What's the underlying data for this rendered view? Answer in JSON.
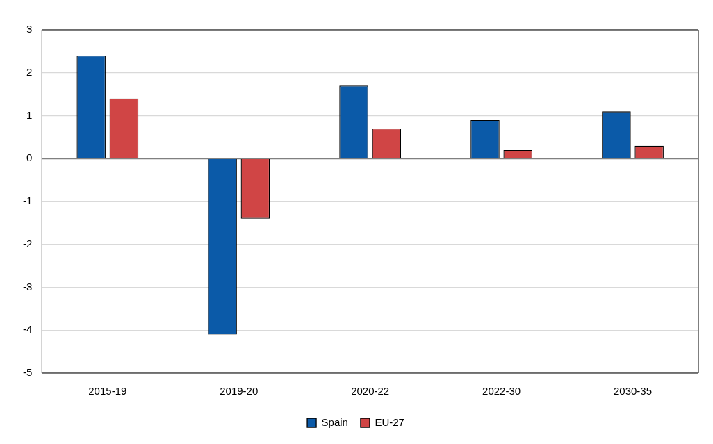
{
  "chart_data": {
    "type": "bar",
    "categories": [
      "2015-19",
      "2019-20",
      "2020-22",
      "2022-30",
      "2030-35"
    ],
    "series": [
      {
        "name": "Spain",
        "color": "#0b5aa8",
        "values": [
          2.4,
          -4.1,
          1.7,
          0.9,
          1.1
        ]
      },
      {
        "name": "EU-27",
        "color": "#d04545",
        "values": [
          1.4,
          -1.4,
          0.7,
          0.2,
          0.3
        ]
      }
    ],
    "ylim": [
      -5,
      3
    ],
    "yticks": [
      -5,
      -4,
      -3,
      -2,
      -1,
      0,
      1,
      2,
      3
    ],
    "grid": "y",
    "legend": "bottom"
  }
}
